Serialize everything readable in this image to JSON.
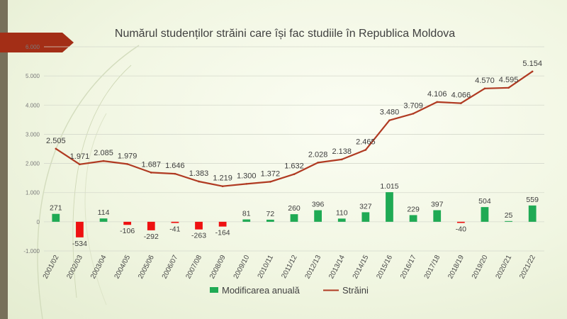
{
  "chart_data": {
    "type": "bar",
    "title": "Numărul studenților străini care își fac studiile în Republica Moldova",
    "categories": [
      "2001/02",
      "2002/03",
      "2003/04",
      "2004/05",
      "2005/06",
      "2006/07",
      "2007/08",
      "2008/09",
      "2009/10",
      "2010/11",
      "2011/12",
      "2012/13",
      "2013/14",
      "2014/15",
      "2015/16",
      "2016/17",
      "2017/18",
      "2018/19",
      "2019/20",
      "2020/21",
      "2021/22"
    ],
    "series": [
      {
        "name": "Modificarea anuală",
        "chart_type": "bar",
        "values": [
          271,
          -534,
          114,
          -106,
          -292,
          -41,
          -263,
          -164,
          81,
          72,
          260,
          396,
          110,
          327,
          1015,
          229,
          397,
          -40,
          504,
          25,
          559
        ],
        "labels": [
          "271",
          "-534",
          "114",
          "-106",
          "-292",
          "-41",
          "-263",
          "-164",
          "81",
          "72",
          "260",
          "396",
          "110",
          "327",
          "1.015",
          "229",
          "397",
          "-40",
          "504",
          "25",
          "559"
        ]
      },
      {
        "name": "Străini",
        "chart_type": "line",
        "values": [
          2505,
          1971,
          2085,
          1979,
          1687,
          1646,
          1383,
          1219,
          1300,
          1372,
          1632,
          2028,
          2138,
          2465,
          3480,
          3709,
          4106,
          4066,
          4570,
          4595,
          5154
        ],
        "labels": [
          "2.505",
          "1.971",
          "2.085",
          "1.979",
          "1.687",
          "1.646",
          "1.383",
          "1.219",
          "1.300",
          "1.372",
          "1.632",
          "2.028",
          "2.138",
          "2.465",
          "3.480",
          "3.709",
          "4.106",
          "4.066",
          "4.570",
          "4.595",
          "5.154"
        ]
      }
    ],
    "y_ticks": [
      {
        "value": -1000,
        "label": "-1.000"
      },
      {
        "value": 0,
        "label": "0"
      },
      {
        "value": 1000,
        "label": "1.000"
      },
      {
        "value": 2000,
        "label": "2.000"
      },
      {
        "value": 3000,
        "label": "3.000"
      },
      {
        "value": 4000,
        "label": "4.000"
      },
      {
        "value": 5000,
        "label": "5.000"
      },
      {
        "value": 6000,
        "label": "6.000"
      }
    ],
    "ylim": [
      -1000,
      6000
    ],
    "grid": true,
    "legend_position": "bottom",
    "colors": {
      "bar_positive": "#1faa54",
      "bar_negative": "#ee1111",
      "line": "#b03a22",
      "gridline": "#d5d9cc",
      "title_banner": "#a32e16",
      "sidebar": "#77705a"
    }
  }
}
